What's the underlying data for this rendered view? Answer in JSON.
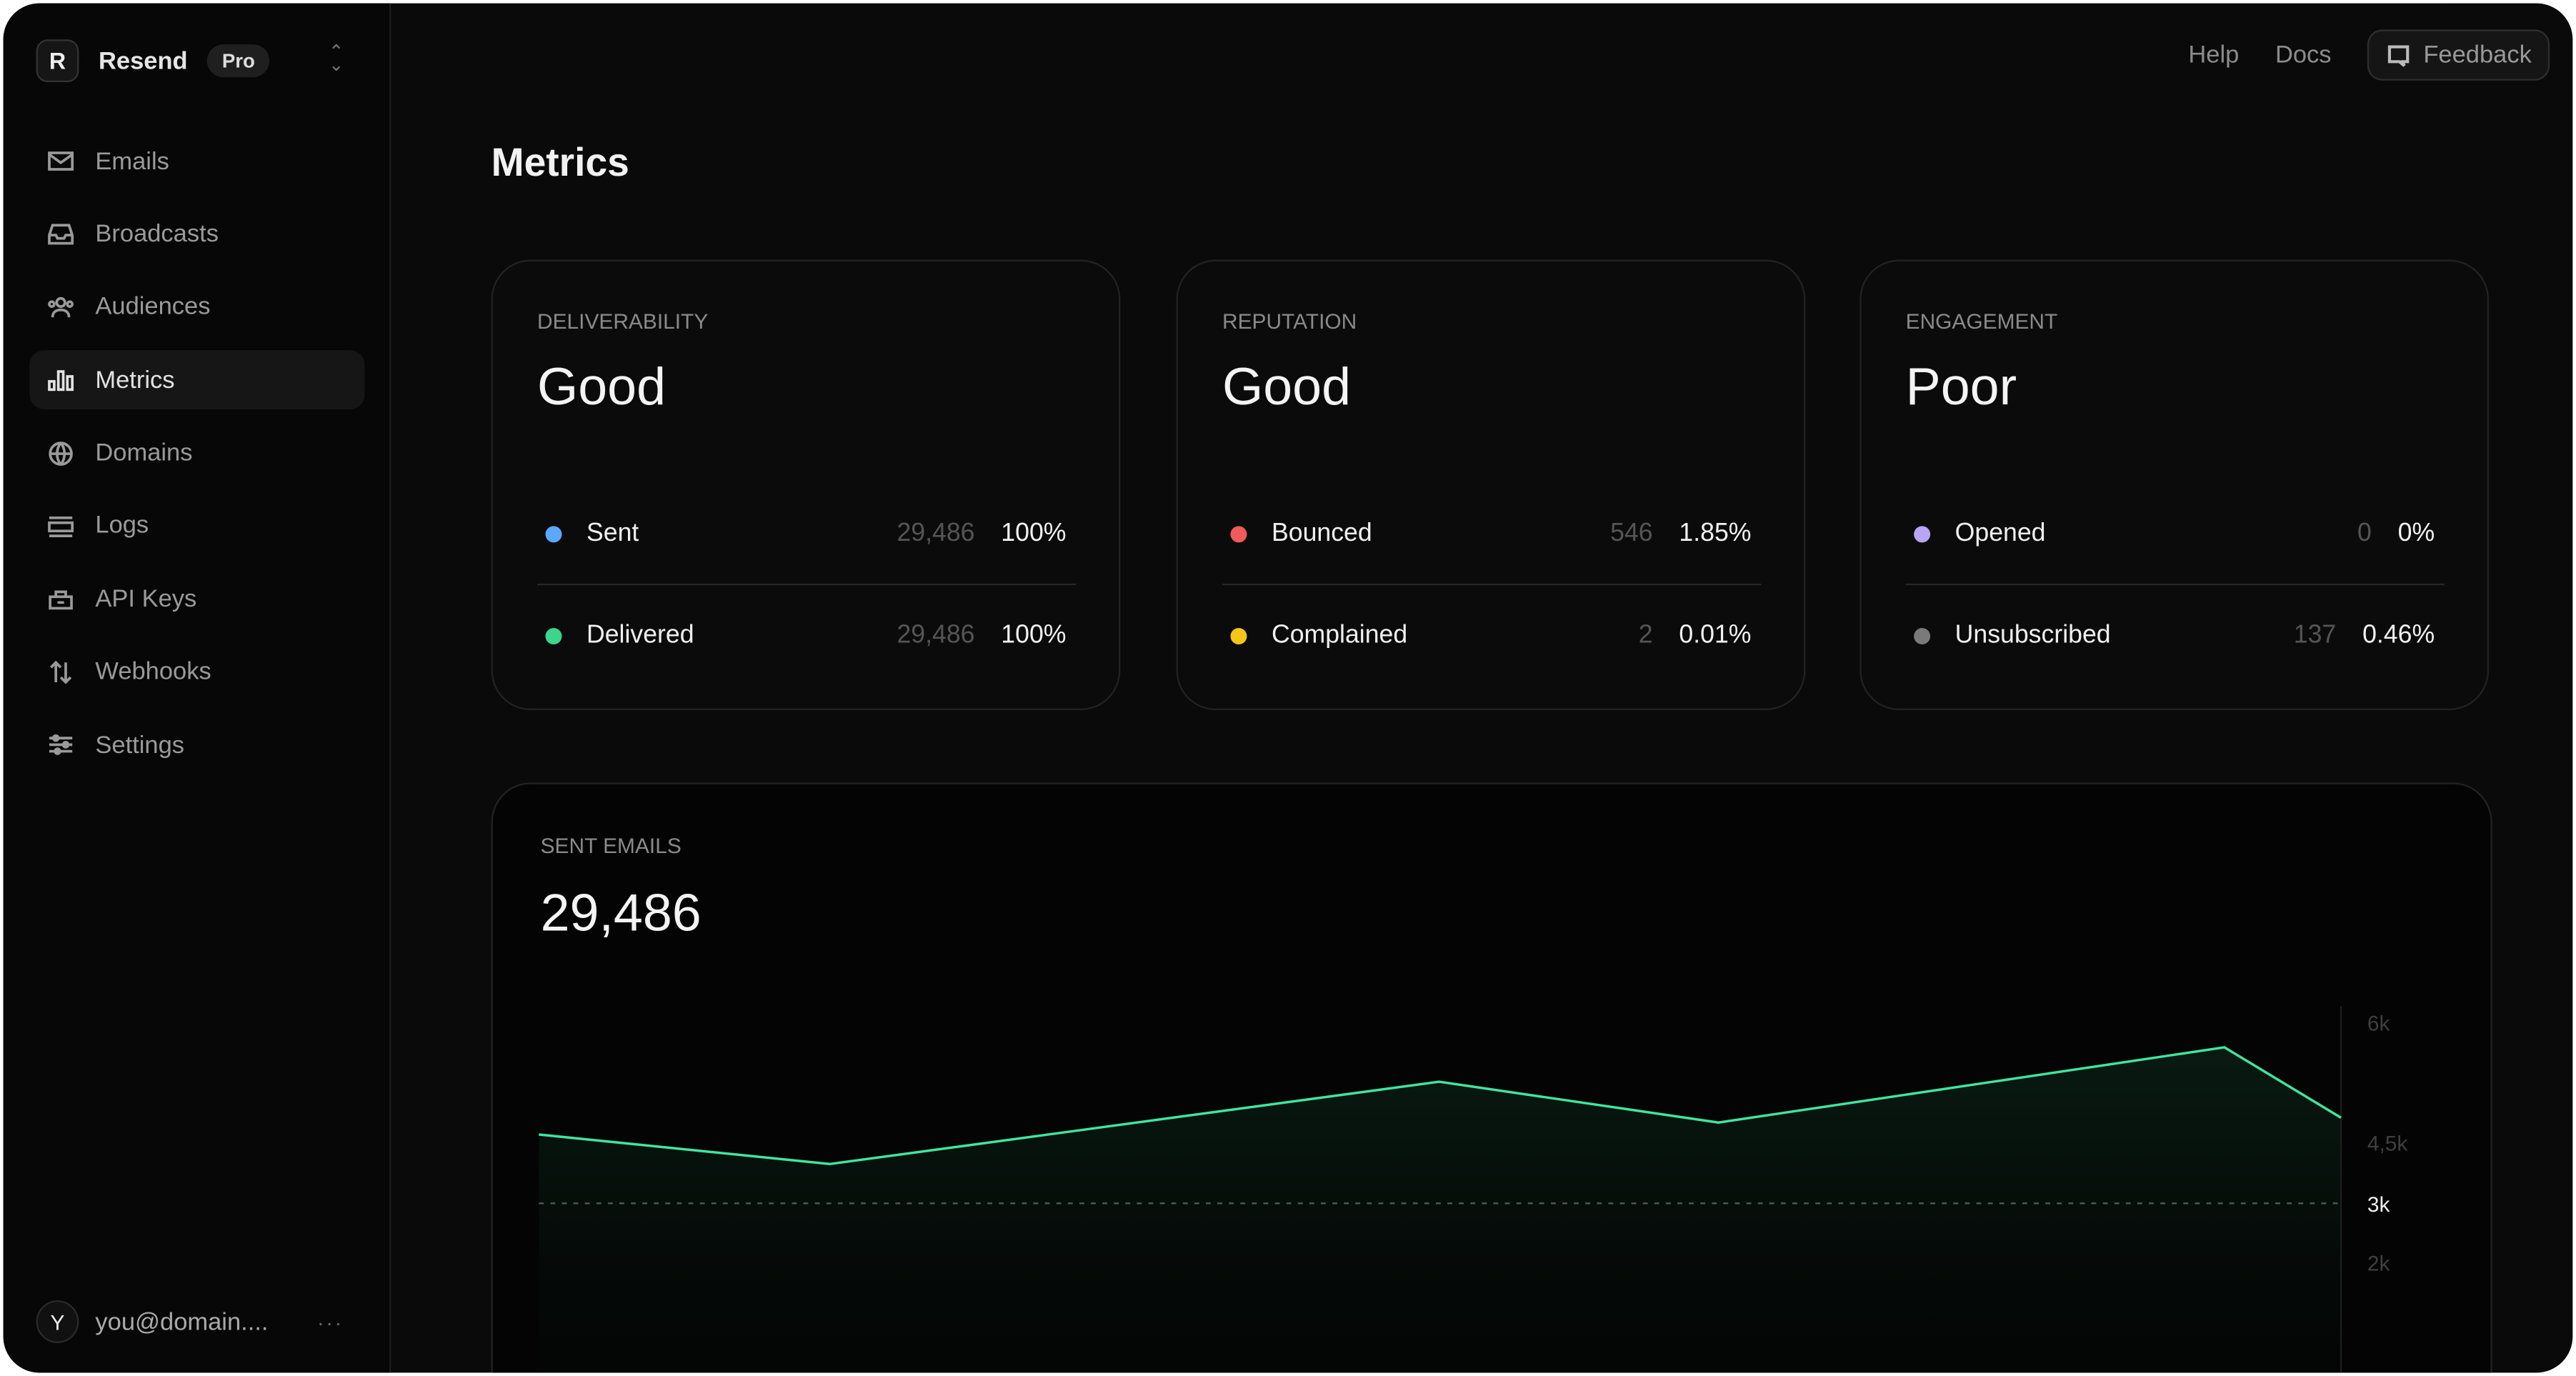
{
  "brand": {
    "name": "Resend",
    "plan": "Pro"
  },
  "sidebar": {
    "items": [
      {
        "label": "Emails",
        "icon": "mail-icon"
      },
      {
        "label": "Broadcasts",
        "icon": "inbox-icon"
      },
      {
        "label": "Audiences",
        "icon": "users-icon"
      },
      {
        "label": "Metrics",
        "icon": "bar-chart-icon",
        "active": true
      },
      {
        "label": "Domains",
        "icon": "globe-icon"
      },
      {
        "label": "Logs",
        "icon": "logs-icon"
      },
      {
        "label": "API Keys",
        "icon": "lock-icon"
      },
      {
        "label": "Webhooks",
        "icon": "arrows-up-down-icon"
      },
      {
        "label": "Settings",
        "icon": "sliders-icon"
      }
    ]
  },
  "user": {
    "initial": "Y",
    "email": "you@domain....",
    "more": "···"
  },
  "topnav": {
    "help": "Help",
    "docs": "Docs",
    "feedback": "Feedback"
  },
  "page": {
    "title": "Metrics"
  },
  "cards": [
    {
      "label": "DELIVERABILITY",
      "status": "Good",
      "rows": [
        {
          "name": "Sent",
          "count": "29,486",
          "pct": "100%",
          "color": "#5aa8ff"
        },
        {
          "name": "Delivered",
          "count": "29,486",
          "pct": "100%",
          "color": "#3bd68c"
        }
      ]
    },
    {
      "label": "REPUTATION",
      "status": "Good",
      "rows": [
        {
          "name": "Bounced",
          "count": "546",
          "pct": "1.85%",
          "color": "#f05a5a"
        },
        {
          "name": "Complained",
          "count": "2",
          "pct": "0.01%",
          "color": "#f5c518"
        }
      ]
    },
    {
      "label": "ENGAGEMENT",
      "status": "Poor",
      "rows": [
        {
          "name": "Opened",
          "count": "0",
          "pct": "0%",
          "color": "#b9a5f5"
        },
        {
          "name": "Unsubscribed",
          "count": "137",
          "pct": "0.46%",
          "color": "#7a7a7a"
        }
      ]
    }
  ],
  "sent_emails": {
    "label": "SENT EMAILS",
    "total": "29,486"
  },
  "chart_data": {
    "type": "area",
    "values": [
      4600,
      3970,
      5260,
      4750,
      5690,
      4810
    ],
    "y_ticks": [
      {
        "label": "6k",
        "value": 6000
      },
      {
        "label": "4,5k",
        "value": 4500
      },
      {
        "label": "3k",
        "value": 3000,
        "highlight": true
      },
      {
        "label": "2k",
        "value": 2000
      }
    ],
    "reference_line": 3000,
    "line_color": "#3ee6a0",
    "grid": false
  }
}
